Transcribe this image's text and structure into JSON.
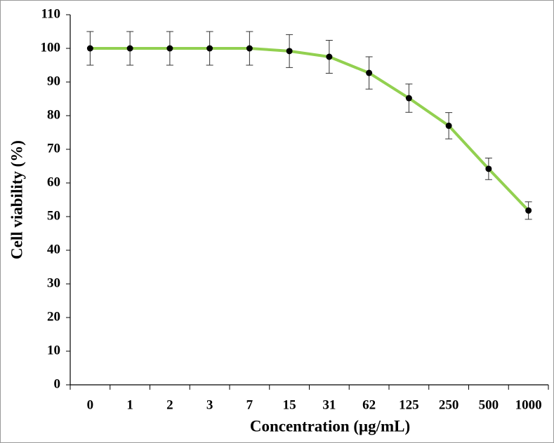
{
  "chart_data": {
    "type": "line",
    "x_label": "Concentration (μg/mL)",
    "y_label": "Cell viability (%)",
    "categories": [
      "0",
      "1",
      "2",
      "3",
      "7",
      "15",
      "31",
      "62",
      "125",
      "250",
      "500",
      "1000"
    ],
    "values": [
      100,
      100,
      100,
      100,
      100,
      99.2,
      97.5,
      92.7,
      85.2,
      77,
      64.2,
      51.8
    ],
    "errors": [
      5,
      5,
      5,
      5,
      5,
      4.9,
      4.9,
      4.8,
      4.2,
      3.9,
      3.2,
      2.6
    ],
    "color": "#92d050",
    "marker_color": "#000000",
    "ylim": [
      0,
      110
    ],
    "yticks": [
      0,
      10,
      20,
      30,
      40,
      50,
      60,
      70,
      80,
      90,
      100,
      110
    ],
    "grid": false
  }
}
